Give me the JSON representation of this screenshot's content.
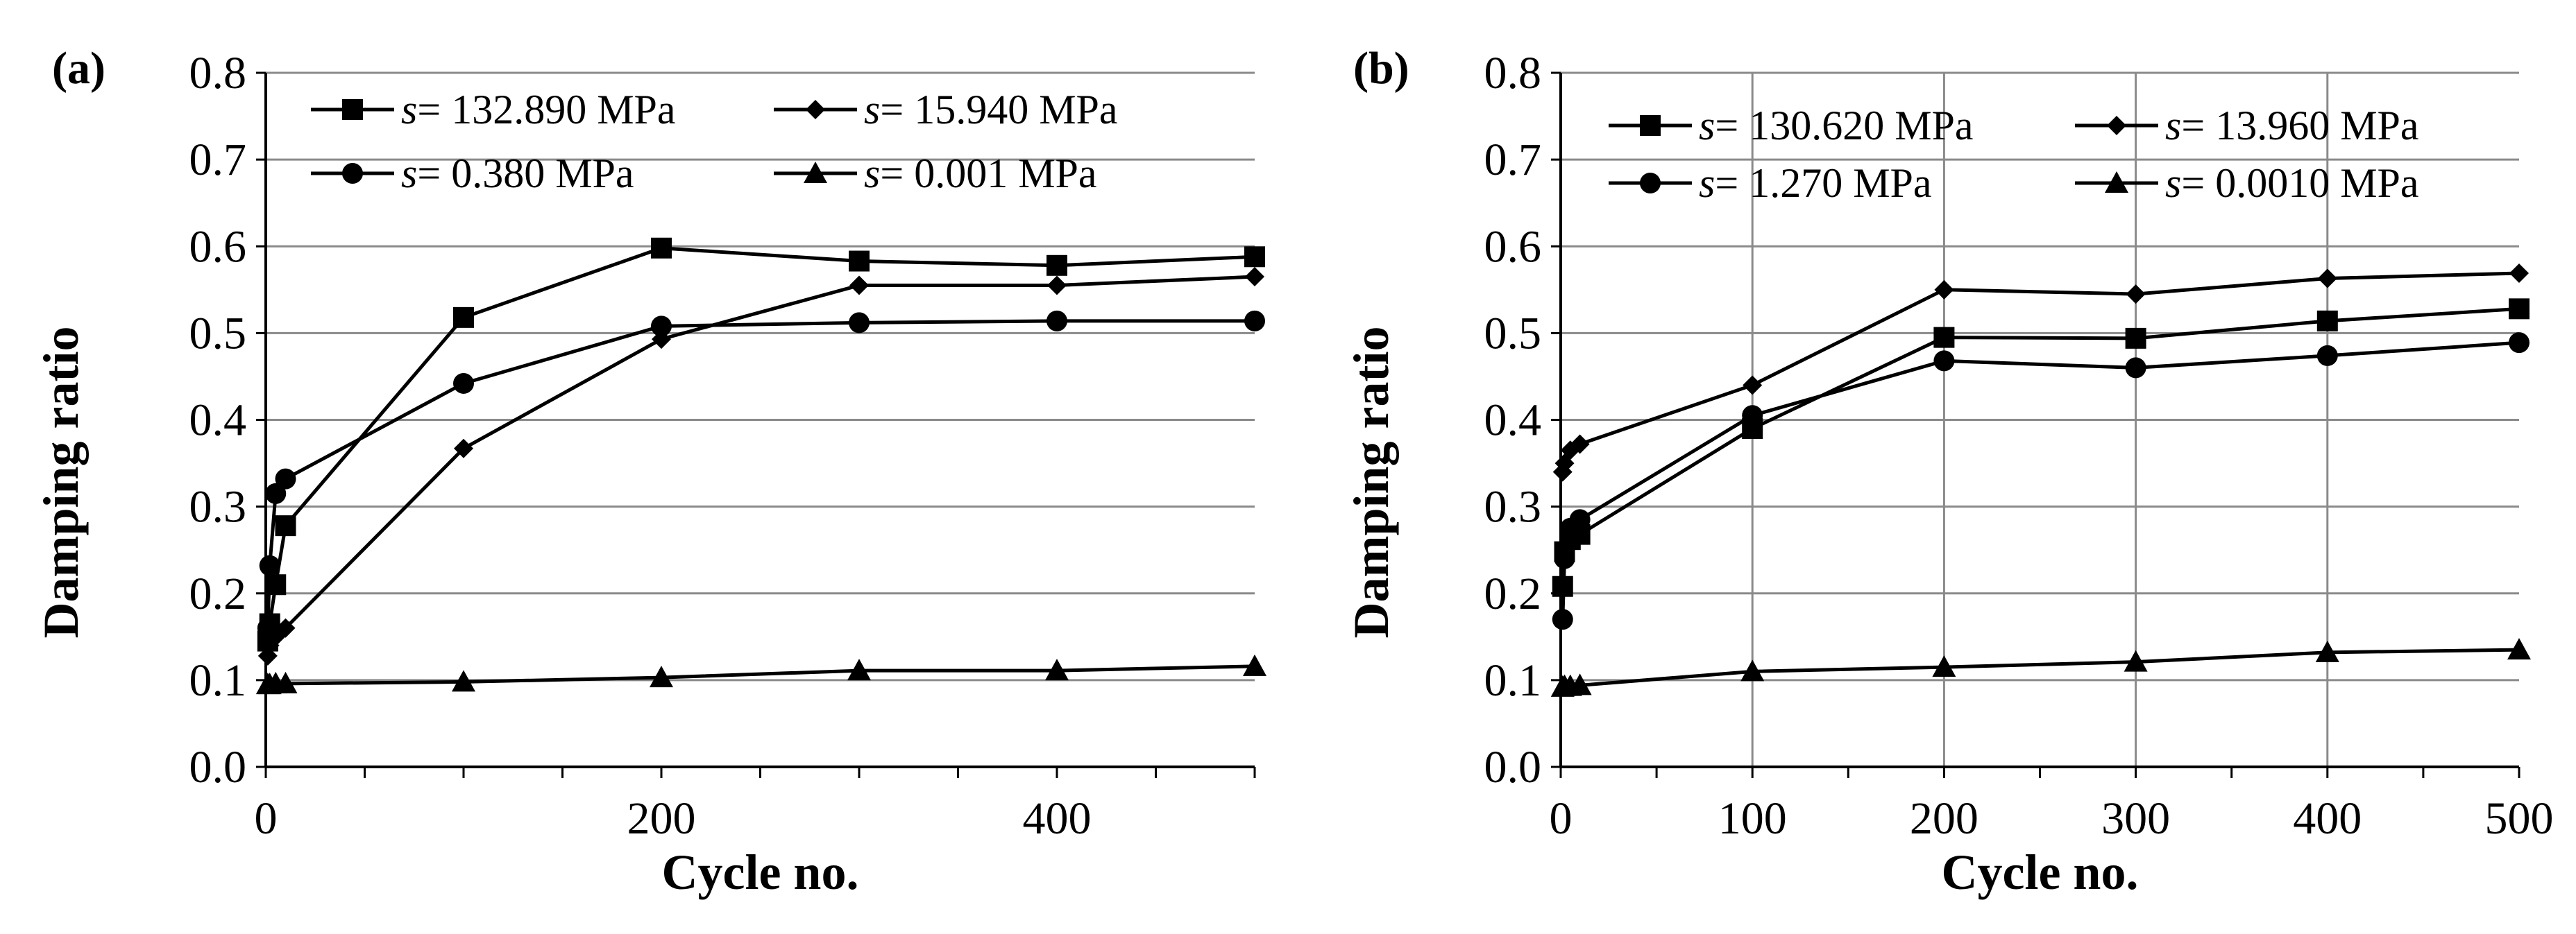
{
  "chart_data": [
    {
      "type": "line",
      "panel_label": "(a)",
      "xlabel": "Cycle no.",
      "ylabel": "Damping ratio",
      "xlim": [
        0,
        500
      ],
      "ylim": [
        0,
        0.8
      ],
      "x_ticks": [
        "0",
        "200",
        "400"
      ],
      "y_ticks": [
        "0.0",
        "0.1",
        "0.2",
        "0.3",
        "0.4",
        "0.5",
        "0.6",
        "0.7",
        "0.8"
      ],
      "legend": "top, inside plot, 2 columns",
      "series": [
        {
          "name": "s= 132.890 MPa",
          "symbol": "s",
          "value_text": "= 132.890 MPa",
          "marker": "square",
          "x": [
            1,
            2,
            5,
            10,
            100,
            200,
            300,
            400,
            500
          ],
          "y": [
            0.145,
            0.165,
            0.21,
            0.278,
            0.518,
            0.598,
            0.583,
            0.578,
            0.588
          ]
        },
        {
          "name": "s= 15.940 MPa",
          "symbol": "s",
          "value_text": "= 15.940 MPa",
          "marker": "diamond",
          "x": [
            1,
            2,
            5,
            10,
            100,
            200,
            300,
            400,
            500
          ],
          "y": [
            0.128,
            0.14,
            0.15,
            0.16,
            0.367,
            0.493,
            0.555,
            0.555,
            0.565
          ]
        },
        {
          "name": "s= 0.380 MPa",
          "symbol": "s",
          "value_text": "= 0.380  MPa",
          "marker": "circle",
          "x": [
            1,
            2,
            5,
            10,
            100,
            200,
            300,
            400,
            500
          ],
          "y": [
            0.16,
            0.232,
            0.315,
            0.332,
            0.442,
            0.508,
            0.512,
            0.514,
            0.514
          ]
        },
        {
          "name": "s= 0.001 MPa",
          "symbol": "s",
          "value_text": "= 0.001  MPa",
          "marker": "triangle",
          "x": [
            1,
            2,
            5,
            10,
            100,
            200,
            300,
            400,
            500
          ],
          "y": [
            0.095,
            0.095,
            0.096,
            0.096,
            0.098,
            0.103,
            0.111,
            0.111,
            0.116
          ]
        }
      ]
    },
    {
      "type": "line",
      "panel_label": "(b)",
      "xlabel": "Cycle no.",
      "ylabel": "Damping ratio",
      "xlim": [
        0,
        500
      ],
      "ylim": [
        0,
        0.8
      ],
      "x_ticks": [
        "0",
        "100",
        "200",
        "300",
        "400",
        "500"
      ],
      "y_ticks": [
        "0.0",
        "0.1",
        "0.2",
        "0.3",
        "0.4",
        "0.5",
        "0.6",
        "0.7",
        "0.8"
      ],
      "legend": "top, inside plot, 2 columns",
      "series": [
        {
          "name": "s= 130.620 MPa",
          "symbol": "s",
          "value_text": "= 130.620 MPa",
          "marker": "square",
          "x": [
            1,
            2,
            5,
            10,
            100,
            200,
            300,
            400,
            500
          ],
          "y": [
            0.208,
            0.248,
            0.262,
            0.268,
            0.39,
            0.495,
            0.494,
            0.514,
            0.528
          ]
        },
        {
          "name": "s= 13.960 MPa",
          "symbol": "s",
          "value_text": "= 13.960 MPa",
          "marker": "diamond",
          "x": [
            1,
            2,
            5,
            10,
            100,
            200,
            300,
            400,
            500
          ],
          "y": [
            0.34,
            0.35,
            0.365,
            0.372,
            0.44,
            0.55,
            0.545,
            0.563,
            0.569
          ]
        },
        {
          "name": "s= 1.270 MPa",
          "symbol": "s",
          "value_text": "= 1.270  MPa",
          "marker": "circle",
          "x": [
            1,
            2,
            5,
            10,
            100,
            200,
            300,
            400,
            500
          ],
          "y": [
            0.17,
            0.24,
            0.275,
            0.285,
            0.405,
            0.468,
            0.46,
            0.474,
            0.489
          ]
        },
        {
          "name": "s= 0.0010 MPa",
          "symbol": "s",
          "value_text": "= 0.0010 MPa",
          "marker": "triangle",
          "x": [
            1,
            2,
            5,
            10,
            100,
            200,
            300,
            400,
            500
          ],
          "y": [
            0.092,
            0.093,
            0.093,
            0.094,
            0.11,
            0.115,
            0.121,
            0.132,
            0.135
          ]
        }
      ]
    }
  ]
}
